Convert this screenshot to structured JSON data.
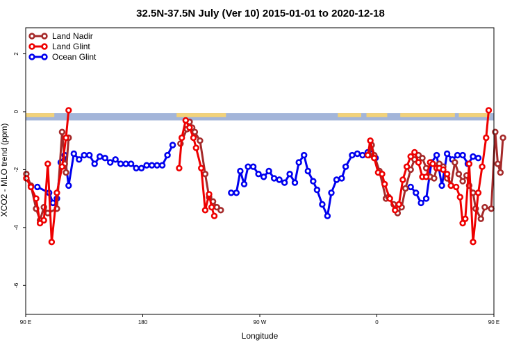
{
  "chart_data": {
    "type": "line",
    "title": "32.5N-37.5N July (Ver 10)   2015-01-01 to 2020-12-18",
    "xlabel": "Longitude",
    "ylabel": "XCO2 - MLO trend (ppm)",
    "xlim": [
      90,
      450
    ],
    "ylim": [
      -7,
      2.9
    ],
    "x_ticks": [
      {
        "value": 90,
        "label": "90 E"
      },
      {
        "value": 180,
        "label": "180"
      },
      {
        "value": 270,
        "label": "90 W"
      },
      {
        "value": 360,
        "label": "0"
      },
      {
        "value": 450,
        "label": "90 E"
      },
      {
        "value": 540,
        "label": "180"
      }
    ],
    "y_ticks": [
      {
        "value": 2,
        "label": "2"
      },
      {
        "value": 0,
        "label": "0"
      },
      {
        "value": -2,
        "label": "-2"
      },
      {
        "value": -4,
        "label": "-4"
      },
      {
        "value": -6,
        "label": "-6"
      }
    ],
    "legend": {
      "position": "top-left"
    },
    "land_mask_strip": {
      "y_top": -0.05,
      "y_bottom": -0.3,
      "ocean_color": "#a3b5d9",
      "land_color": "#f2d27a"
    },
    "series": [
      {
        "name": "Land Nadir",
        "color": "#a52a2a",
        "points": [
          [
            90.5,
            -2.15
          ],
          [
            94,
            -2.55
          ],
          [
            98,
            -3.35
          ],
          [
            101,
            -3.75
          ],
          [
            104,
            -3.3
          ],
          [
            107,
            -3.5
          ],
          [
            114,
            -3.35
          ],
          [
            118,
            -0.7
          ],
          [
            120,
            -1.8
          ],
          [
            121,
            -2.1
          ],
          [
            123,
            -0.9
          ],
          [
            209,
            -1.1
          ],
          [
            214,
            -0.6
          ],
          [
            216,
            -0.35
          ],
          [
            218,
            -0.55
          ],
          [
            220,
            -0.7
          ],
          [
            224,
            -1.0
          ],
          [
            228,
            -2.15
          ],
          [
            231,
            -2.95
          ],
          [
            234,
            -3.1
          ],
          [
            237,
            -3.3
          ],
          [
            240,
            -3.4
          ],
          [
            354,
            -1.5
          ],
          [
            356,
            -1.15
          ],
          [
            358,
            -1.5
          ],
          [
            362,
            -2.05
          ],
          [
            367,
            -3.0
          ],
          [
            369,
            -2.95
          ],
          [
            373,
            -3.2
          ],
          [
            376,
            -3.5
          ],
          [
            379,
            -3.3
          ],
          [
            382,
            -2.65
          ],
          [
            386,
            -2.0
          ],
          [
            389,
            -1.65
          ],
          [
            392,
            -1.5
          ],
          [
            395,
            -1.6
          ],
          [
            398,
            -1.95
          ],
          [
            401,
            -2.25
          ],
          [
            404,
            -2.3
          ],
          [
            406,
            -1.95
          ],
          [
            408,
            -1.8
          ],
          [
            411,
            -1.9
          ],
          [
            414,
            -2.3
          ],
          [
            417,
            -2.55
          ],
          [
            420,
            -1.75
          ],
          [
            423,
            -2.15
          ],
          [
            426,
            -2.4
          ],
          [
            429,
            -2.2
          ],
          [
            431,
            -2.55
          ],
          [
            434,
            -2.8
          ],
          [
            436,
            -3.35
          ],
          [
            440,
            -3.7
          ],
          [
            443,
            -3.3
          ],
          [
            448,
            -3.35
          ],
          [
            451,
            -0.7
          ],
          [
            453,
            -1.8
          ],
          [
            455,
            -2.1
          ],
          [
            457,
            -0.9
          ]
        ]
      },
      {
        "name": "Land Glint",
        "color": "#ee0000",
        "points": [
          [
            90.5,
            -2.3
          ],
          [
            94,
            -2.6
          ],
          [
            98,
            -3.0
          ],
          [
            101,
            -3.85
          ],
          [
            104,
            -3.75
          ],
          [
            107,
            -1.8
          ],
          [
            110,
            -4.5
          ],
          [
            114,
            -2.8
          ],
          [
            118,
            -1.9
          ],
          [
            121,
            -0.9
          ],
          [
            123,
            0.05
          ],
          [
            208,
            -1.95
          ],
          [
            210,
            -0.9
          ],
          [
            213,
            -0.3
          ],
          [
            216,
            -0.55
          ],
          [
            219,
            -0.9
          ],
          [
            221,
            -1.25
          ],
          [
            225,
            -1.95
          ],
          [
            228,
            -3.4
          ],
          [
            231,
            -2.85
          ],
          [
            233,
            -3.3
          ],
          [
            235,
            -3.6
          ],
          [
            353,
            -1.5
          ],
          [
            355,
            -1.0
          ],
          [
            358,
            -1.6
          ],
          [
            361,
            -2.1
          ],
          [
            364,
            -2.15
          ],
          [
            366,
            -2.5
          ],
          [
            370,
            -3.0
          ],
          [
            374,
            -3.4
          ],
          [
            377,
            -3.2
          ],
          [
            380,
            -2.35
          ],
          [
            383,
            -1.9
          ],
          [
            386,
            -1.55
          ],
          [
            389,
            -1.4
          ],
          [
            392,
            -1.75
          ],
          [
            395,
            -2.25
          ],
          [
            398,
            -2.25
          ],
          [
            401,
            -1.75
          ],
          [
            403,
            -1.8
          ],
          [
            406,
            -1.95
          ],
          [
            408,
            -1.95
          ],
          [
            411,
            -2.0
          ],
          [
            414,
            -2.15
          ],
          [
            417,
            -2.55
          ],
          [
            421,
            -2.6
          ],
          [
            424,
            -2.95
          ],
          [
            426,
            -3.85
          ],
          [
            428,
            -3.7
          ],
          [
            431,
            -1.8
          ],
          [
            434,
            -4.5
          ],
          [
            438,
            -2.8
          ],
          [
            441,
            -1.9
          ],
          [
            444,
            -0.9
          ],
          [
            446,
            0.05
          ]
        ]
      },
      {
        "name": "Ocean Glint",
        "color": "#0000ee",
        "points": [
          [
            99,
            -2.6
          ],
          [
            108,
            -2.8
          ],
          [
            111,
            -3.15
          ],
          [
            114,
            -3.0
          ],
          [
            117,
            -1.75
          ],
          [
            120,
            -1.5
          ],
          [
            123,
            -2.55
          ],
          [
            127,
            -1.45
          ],
          [
            131,
            -1.65
          ],
          [
            135,
            -1.5
          ],
          [
            139,
            -1.5
          ],
          [
            143,
            -1.8
          ],
          [
            147,
            -1.55
          ],
          [
            151,
            -1.6
          ],
          [
            155,
            -1.75
          ],
          [
            159,
            -1.65
          ],
          [
            163,
            -1.8
          ],
          [
            167,
            -1.8
          ],
          [
            171,
            -1.8
          ],
          [
            175,
            -1.95
          ],
          [
            179,
            -1.95
          ],
          [
            183,
            -1.85
          ],
          [
            187,
            -1.85
          ],
          [
            191,
            -1.85
          ],
          [
            195,
            -1.85
          ],
          [
            199,
            -1.5
          ],
          [
            203,
            -1.15
          ],
          [
            248,
            -2.8
          ],
          [
            252,
            -2.8
          ],
          [
            255,
            -2.05
          ],
          [
            258,
            -2.5
          ],
          [
            261,
            -1.9
          ],
          [
            265,
            -1.9
          ],
          [
            269,
            -2.15
          ],
          [
            273,
            -2.25
          ],
          [
            277,
            -2.05
          ],
          [
            281,
            -2.3
          ],
          [
            285,
            -2.35
          ],
          [
            289,
            -2.45
          ],
          [
            293,
            -2.15
          ],
          [
            297,
            -2.45
          ],
          [
            300,
            -1.75
          ],
          [
            304,
            -1.5
          ],
          [
            307,
            -2.05
          ],
          [
            311,
            -2.4
          ],
          [
            314,
            -2.7
          ],
          [
            318,
            -3.2
          ],
          [
            322,
            -3.6
          ],
          [
            325,
            -2.8
          ],
          [
            329,
            -2.35
          ],
          [
            333,
            -2.3
          ],
          [
            336,
            -1.9
          ],
          [
            341,
            -1.5
          ],
          [
            345,
            -1.45
          ],
          [
            349,
            -1.5
          ],
          [
            353,
            -1.4
          ],
          [
            356,
            -1.45
          ],
          [
            359,
            -1.6
          ]
        ]
      }
    ],
    "ocean_glint_right_segment": {
      "points": [
        [
          386,
          -2.6
        ],
        [
          390,
          -2.8
        ],
        [
          394,
          -3.15
        ],
        [
          398,
          -3.0
        ],
        [
          402,
          -1.75
        ],
        [
          406,
          -1.5
        ],
        [
          410,
          -2.55
        ],
        [
          414,
          -1.45
        ],
        [
          418,
          -1.65
        ],
        [
          422,
          -1.5
        ],
        [
          426,
          -1.5
        ],
        [
          430,
          -1.8
        ],
        [
          434,
          -1.55
        ],
        [
          438,
          -1.6
        ]
      ]
    }
  }
}
